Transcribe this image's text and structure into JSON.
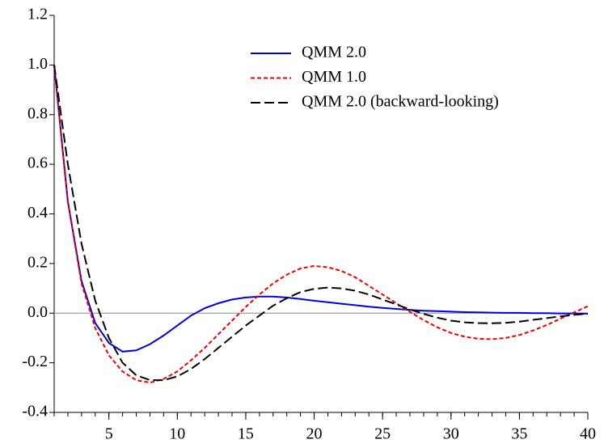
{
  "chart_data": {
    "type": "line",
    "x": [
      1,
      2,
      3,
      4,
      5,
      6,
      7,
      8,
      9,
      10,
      11,
      12,
      13,
      14,
      15,
      16,
      17,
      18,
      19,
      20,
      21,
      22,
      23,
      24,
      25,
      26,
      27,
      28,
      29,
      30,
      31,
      32,
      33,
      34,
      35,
      36,
      37,
      38,
      39,
      40
    ],
    "series": [
      {
        "name": "QMM 2.0",
        "color": "#0000dd",
        "style": "solid",
        "values": [
          1.0,
          0.45,
          0.13,
          -0.04,
          -0.12,
          -0.155,
          -0.15,
          -0.125,
          -0.09,
          -0.05,
          -0.01,
          0.02,
          0.04,
          0.055,
          0.063,
          0.067,
          0.067,
          0.063,
          0.057,
          0.05,
          0.044,
          0.038,
          0.032,
          0.026,
          0.021,
          0.017,
          0.013,
          0.01,
          0.008,
          0.006,
          0.004,
          0.003,
          0.002,
          0.001,
          0.001,
          0,
          0,
          -0.001,
          -0.001,
          -0.002
        ]
      },
      {
        "name": "QMM 1.0",
        "color": "#ee0000",
        "style": "dashed",
        "values": [
          1.0,
          0.45,
          0.12,
          -0.06,
          -0.17,
          -0.235,
          -0.27,
          -0.28,
          -0.265,
          -0.235,
          -0.19,
          -0.14,
          -0.085,
          -0.03,
          0.025,
          0.075,
          0.12,
          0.155,
          0.18,
          0.19,
          0.185,
          0.17,
          0.145,
          0.11,
          0.075,
          0.04,
          0.005,
          -0.028,
          -0.057,
          -0.08,
          -0.095,
          -0.103,
          -0.105,
          -0.1,
          -0.088,
          -0.07,
          -0.048,
          -0.022,
          0.003,
          0.028
        ]
      },
      {
        "name": "QMM 2.0 (backward-looking)",
        "color": "#000000",
        "style": "longdash",
        "values": [
          1.0,
          0.6,
          0.28,
          0.05,
          -0.1,
          -0.2,
          -0.25,
          -0.27,
          -0.27,
          -0.255,
          -0.225,
          -0.185,
          -0.14,
          -0.095,
          -0.05,
          -0.01,
          0.03,
          0.06,
          0.085,
          0.098,
          0.103,
          0.1,
          0.09,
          0.075,
          0.055,
          0.035,
          0.015,
          -0.003,
          -0.018,
          -0.03,
          -0.037,
          -0.04,
          -0.041,
          -0.039,
          -0.034,
          -0.027,
          -0.02,
          -0.013,
          -0.007,
          -0.002
        ]
      }
    ],
    "xlim": [
      1,
      40
    ],
    "xticks": [
      5,
      10,
      15,
      20,
      25,
      30,
      35,
      40
    ],
    "ylim": [
      -0.4,
      1.2
    ],
    "yticks": [
      {
        "value": -0.4,
        "label": "-0.4"
      },
      -0.2,
      {
        "value": 0,
        "label": "0.0"
      },
      0.2,
      0.4,
      0.6,
      0.8,
      {
        "value": 1,
        "label": "1.0"
      },
      1.2
    ],
    "zero_line": true,
    "legend": "upper right"
  }
}
